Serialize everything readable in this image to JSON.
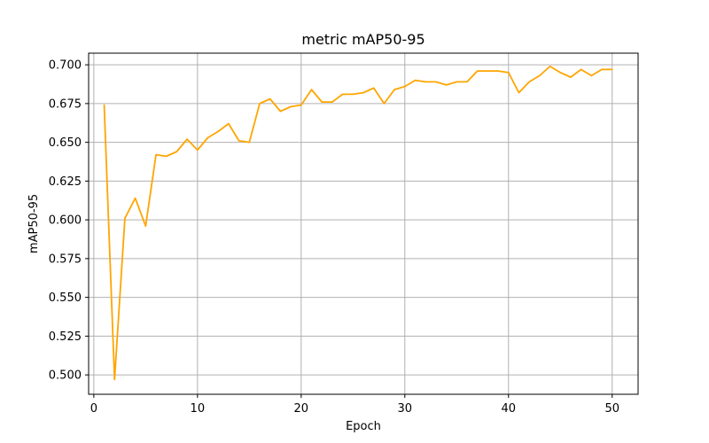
{
  "chart_data": {
    "type": "line",
    "title": "metric mAP50-95",
    "xlabel": "Epoch",
    "ylabel": "mAP50-95",
    "xlim": [
      -0.5,
      52.5
    ],
    "ylim": [
      0.4875,
      0.7075
    ],
    "x_ticks": [
      0,
      10,
      20,
      30,
      40,
      50
    ],
    "y_ticks": [
      0.5,
      0.525,
      0.55,
      0.575,
      0.6,
      0.625,
      0.65,
      0.675,
      0.7
    ],
    "x_tick_labels": [
      "0",
      "10",
      "20",
      "30",
      "40",
      "50"
    ],
    "y_tick_labels": [
      "0.500",
      "0.525",
      "0.550",
      "0.575",
      "0.600",
      "0.625",
      "0.650",
      "0.675",
      "0.700"
    ],
    "grid": true,
    "legend": "none",
    "series": [
      {
        "color": "#ffa500",
        "x": [
          1,
          2,
          3,
          4,
          5,
          6,
          7,
          8,
          9,
          10,
          11,
          12,
          13,
          14,
          15,
          16,
          17,
          18,
          19,
          20,
          21,
          22,
          23,
          24,
          25,
          26,
          27,
          28,
          29,
          30,
          31,
          32,
          33,
          34,
          35,
          36,
          37,
          38,
          39,
          40,
          41,
          42,
          43,
          44,
          45,
          46,
          47,
          48,
          49,
          50
        ],
        "y": [
          0.674,
          0.497,
          0.601,
          0.614,
          0.596,
          0.642,
          0.641,
          0.644,
          0.652,
          0.645,
          0.653,
          0.657,
          0.662,
          0.651,
          0.65,
          0.675,
          0.678,
          0.67,
          0.673,
          0.674,
          0.684,
          0.676,
          0.676,
          0.681,
          0.681,
          0.682,
          0.685,
          0.675,
          0.684,
          0.686,
          0.69,
          0.689,
          0.689,
          0.687,
          0.689,
          0.689,
          0.696,
          0.696,
          0.696,
          0.695,
          0.682,
          0.689,
          0.693,
          0.699,
          0.695,
          0.692,
          0.697,
          0.693,
          0.697,
          0.697
        ]
      }
    ]
  }
}
